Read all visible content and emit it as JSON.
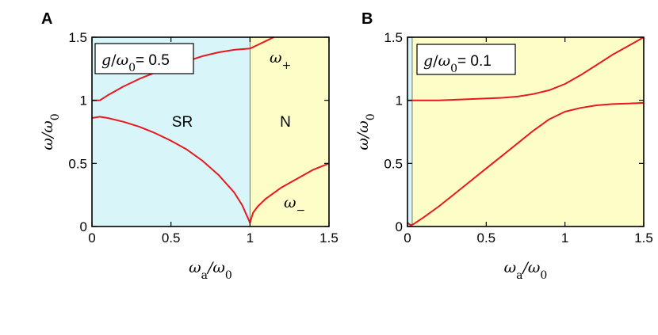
{
  "colors": {
    "sr_region": "#d8f6fa",
    "n_region": "#fdfdc8",
    "curve": "#e8191e",
    "frame": "#000000"
  },
  "chart_data": [
    {
      "type": "line",
      "panel": "A",
      "xlim": [
        0,
        1.5
      ],
      "ylim": [
        0,
        1.5
      ],
      "xticks": [
        "0",
        "0.5",
        "1",
        "1.5"
      ],
      "yticks": [
        "0",
        "0.5",
        "1",
        "1.5"
      ],
      "xlabel": "ωa/ω0",
      "ylabel": "ω/ω0",
      "box_label": "g/ω0 = 0.5",
      "box_g": "g",
      "box_slash": "/",
      "box_omega": "ω",
      "box_sub": "0",
      "box_eq": "= 0.5",
      "x_label_main": "ω",
      "x_label_sub": "a",
      "x_label_slash": "/ω",
      "x_label_sub2": "0",
      "y_label_main": "ω",
      "y_label_slash": "/ω",
      "y_label_sub": "0",
      "regions": [
        {
          "label": "SR",
          "x_from": 0,
          "x_to": 1.0
        },
        {
          "label": "N",
          "x_from": 1.0,
          "x_to": 1.5
        }
      ],
      "curve_labels": [
        {
          "main": "ω",
          "sub": "+"
        },
        {
          "main": "ω",
          "sub": "−"
        }
      ],
      "series": [
        {
          "x": [
            0,
            0.05,
            0.1,
            0.2,
            0.3,
            0.4,
            0.5,
            0.6,
            0.7,
            0.8,
            0.9,
            1.0
          ],
          "values": [
            1.0,
            1.0,
            1.04,
            1.11,
            1.17,
            1.22,
            1.27,
            1.31,
            1.35,
            1.38,
            1.4,
            1.41
          ]
        },
        {
          "x": [
            1.0,
            1.05,
            1.1,
            1.15
          ],
          "values": [
            1.41,
            1.44,
            1.47,
            1.5
          ]
        },
        {
          "x": [
            0,
            0.05,
            0.1,
            0.2,
            0.3,
            0.4,
            0.5,
            0.6,
            0.7,
            0.8,
            0.9,
            0.95,
            1.0
          ],
          "values": [
            0.86,
            0.87,
            0.86,
            0.83,
            0.79,
            0.74,
            0.68,
            0.61,
            0.52,
            0.41,
            0.27,
            0.17,
            0.03
          ]
        },
        {
          "x": [
            1.0,
            1.02,
            1.05,
            1.1,
            1.2,
            1.3,
            1.4,
            1.5
          ],
          "values": [
            0.03,
            0.11,
            0.16,
            0.22,
            0.31,
            0.38,
            0.45,
            0.5
          ]
        }
      ]
    },
    {
      "type": "line",
      "panel": "B",
      "xlim": [
        0,
        1.5
      ],
      "ylim": [
        0,
        1.5
      ],
      "xticks": [
        "0",
        "0.5",
        "1",
        "1.5"
      ],
      "yticks": [
        "0",
        "0.5",
        "1",
        "1.5"
      ],
      "xlabel": "ωa/ω0",
      "ylabel": "ω/ω0",
      "box_label": "g/ω0 = 0.1",
      "box_g": "g",
      "box_slash": "/",
      "box_omega": "ω",
      "box_sub": "0",
      "box_eq": "= 0.1",
      "x_label_main": "ω",
      "x_label_sub": "a",
      "x_label_slash": "/ω",
      "x_label_sub2": "0",
      "y_label_main": "ω",
      "y_label_slash": "/ω",
      "y_label_sub": "0",
      "regions": [
        {
          "label": "",
          "x_from": 0,
          "x_to": 0.03
        },
        {
          "label": "",
          "x_from": 0.03,
          "x_to": 1.5
        }
      ],
      "series": [
        {
          "x": [
            0,
            0.2,
            0.4,
            0.6,
            0.7,
            0.8,
            0.9,
            1.0,
            1.1,
            1.2,
            1.3,
            1.4,
            1.5
          ],
          "values": [
            1.0,
            1.0,
            1.01,
            1.02,
            1.03,
            1.05,
            1.08,
            1.13,
            1.2,
            1.28,
            1.36,
            1.43,
            1.5
          ]
        },
        {
          "x": [
            0,
            0.02,
            0.04,
            0.1,
            0.2,
            0.3,
            0.4,
            0.5,
            0.6,
            0.7,
            0.8,
            0.9,
            1.0,
            1.1,
            1.2,
            1.3,
            1.4,
            1.5
          ],
          "values": [
            0.03,
            0.01,
            0.02,
            0.07,
            0.16,
            0.26,
            0.36,
            0.46,
            0.56,
            0.66,
            0.76,
            0.85,
            0.91,
            0.94,
            0.96,
            0.97,
            0.975,
            0.98
          ]
        }
      ]
    }
  ],
  "panel_letters": [
    "A",
    "B"
  ]
}
